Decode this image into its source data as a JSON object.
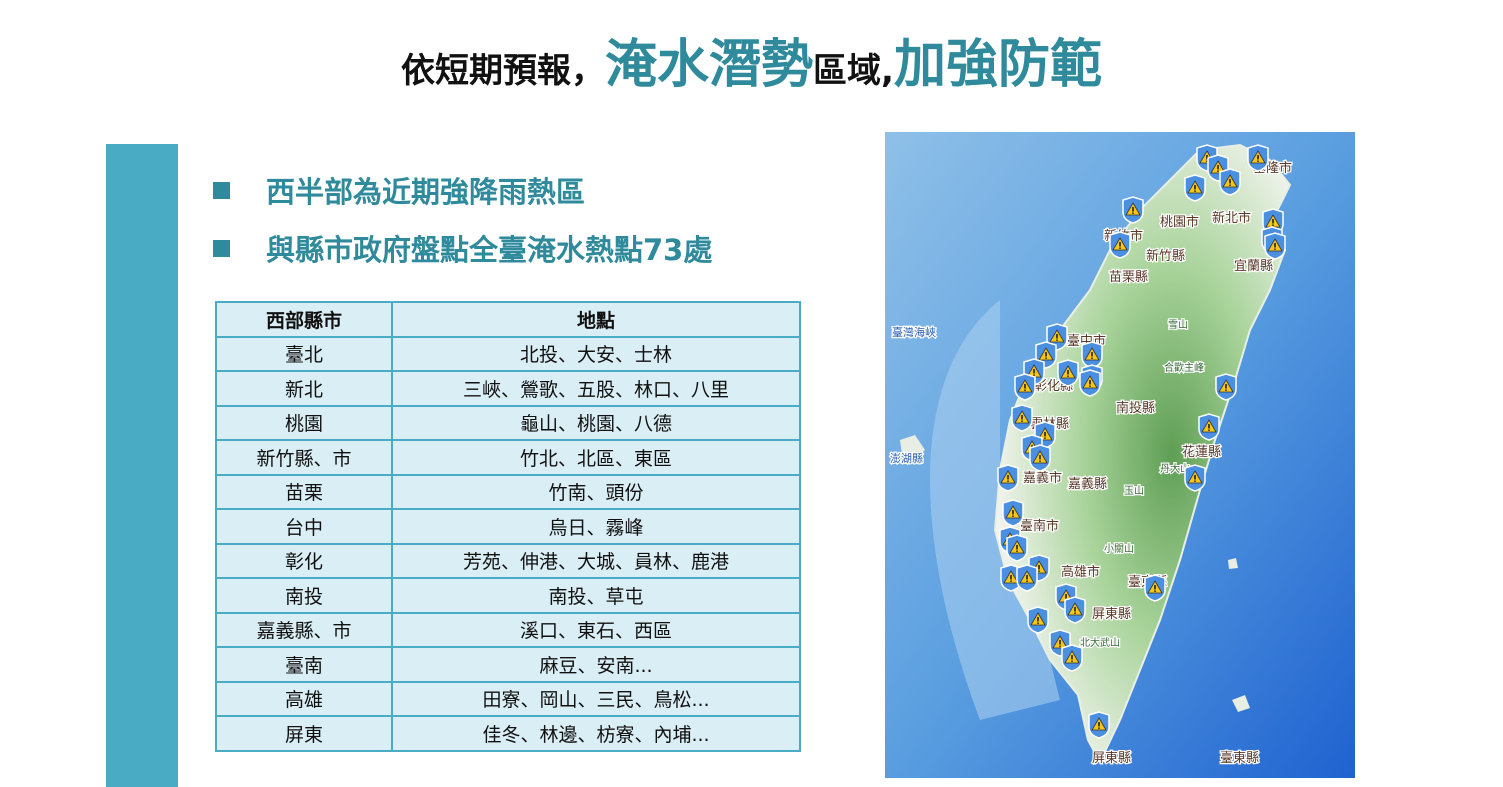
{
  "title": {
    "part1": "依短期預報，",
    "part2": "淹水潛勢",
    "part3": "區域,",
    "part4": "加強防範"
  },
  "bullets": [
    "西半部為近期強降雨熱區",
    "與縣市政府盤點全臺淹水熱點73處"
  ],
  "table": {
    "headers": [
      "西部縣市",
      "地點"
    ],
    "rows": [
      [
        "臺北",
        "北投、大安、士林"
      ],
      [
        "新北",
        "三峽、鶯歌、五股、林口、八里"
      ],
      [
        "桃園",
        "龜山、桃園、八德"
      ],
      [
        "新竹縣、市",
        "竹北、北區、東區"
      ],
      [
        "苗栗",
        "竹南、頭份"
      ],
      [
        "台中",
        "烏日、霧峰"
      ],
      [
        "彰化",
        "芳苑、伸港、大城、員林、鹿港"
      ],
      [
        "南投",
        "南投、草屯"
      ],
      [
        "嘉義縣、市",
        "溪口、東石、西區"
      ],
      [
        "臺南",
        "麻豆、安南..."
      ],
      [
        "高雄",
        "田寮、岡山、三民、鳥松..."
      ],
      [
        "屏東",
        "佳冬、林邊、枋寮、內埔..."
      ]
    ]
  },
  "map": {
    "labels": [
      "基隆市",
      "桃園市",
      "新北市",
      "新竹市",
      "新竹縣",
      "宜蘭縣",
      "苗栗縣",
      "雪山",
      "臺灣海峽",
      "臺中市",
      "合歡主峰",
      "彰化縣",
      "南投縣",
      "雲林縣",
      "花蓮縣",
      "丹大山",
      "澎湖縣",
      "嘉義市",
      "嘉義縣",
      "玉山",
      "臺南市",
      "小關山",
      "高雄市",
      "臺東縣",
      "屏東縣",
      "北大武山",
      "屏東縣",
      "臺東縣"
    ],
    "marker_icon": "flood-warning-shield-icon",
    "colors": {
      "sea": "#3f86d6",
      "land": "#8fc47f",
      "marker": "#4a8fe0",
      "warning": "#f5c518"
    }
  },
  "colors": {
    "accent": "#2f8a9c",
    "bar": "#4aabc4",
    "table_bg": "#daeef5"
  }
}
